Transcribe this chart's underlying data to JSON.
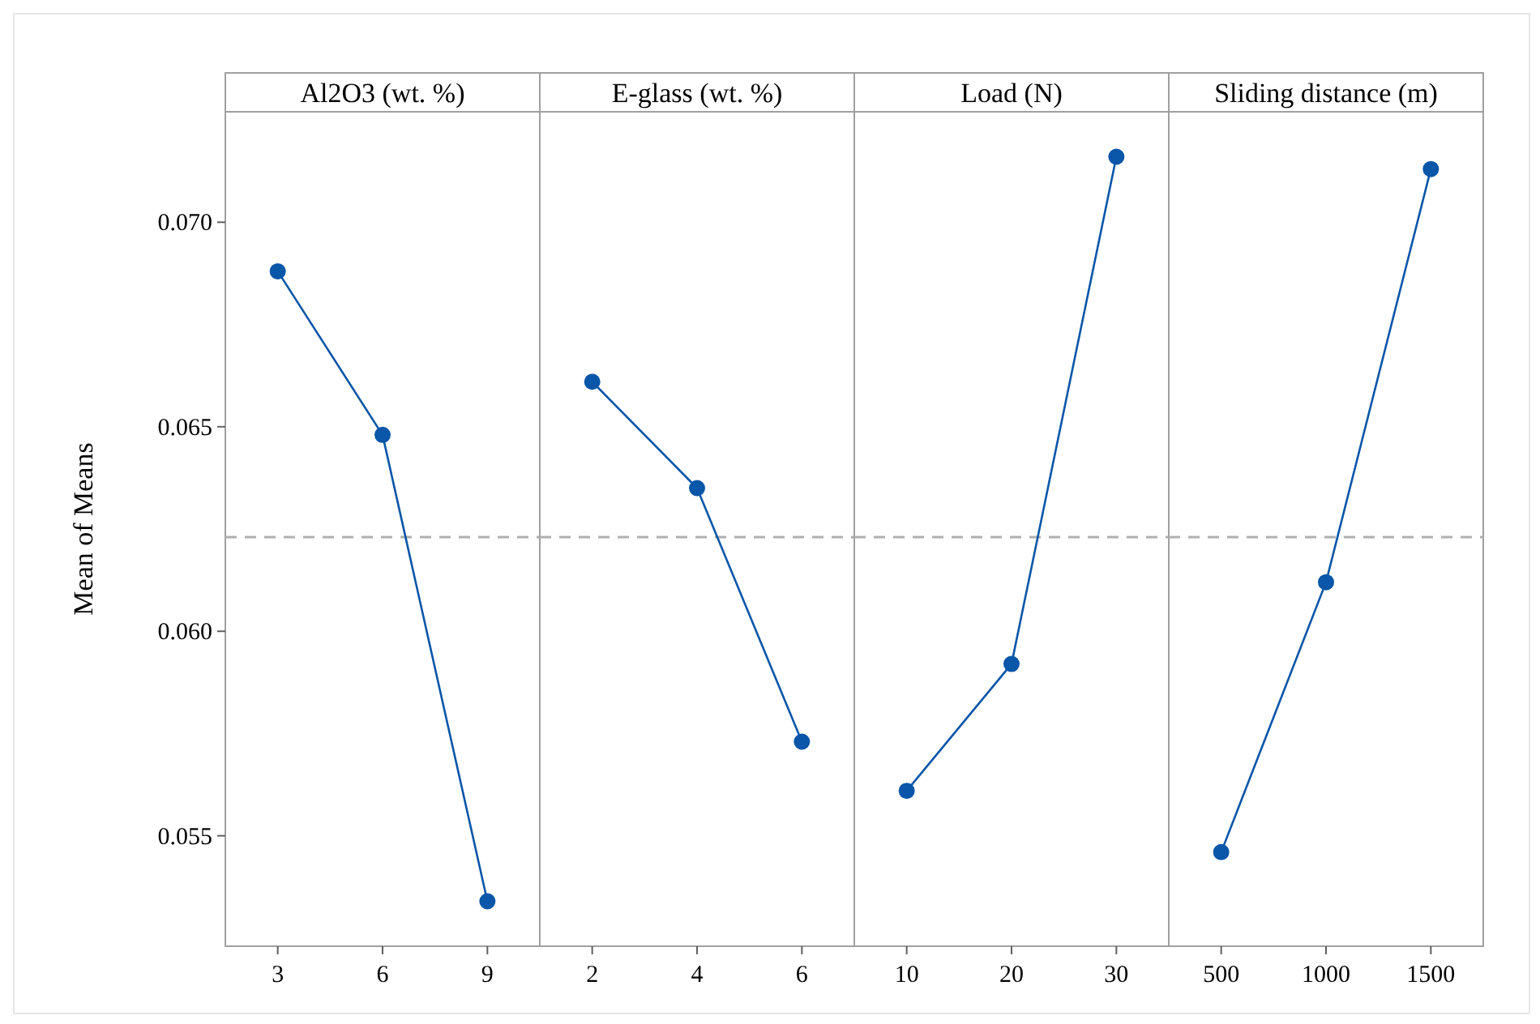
{
  "chart_data": [
    {
      "type": "line",
      "title": "Al2O3 (wt. %)",
      "ylabel": "Mean of Means",
      "categories": [
        "3",
        "6",
        "9"
      ],
      "series": [
        {
          "color": "#0a56a8",
          "values": [
            0.0688,
            0.0648,
            0.0534
          ]
        }
      ],
      "ylim": [
        0.0523,
        0.0727
      ],
      "yticks": [
        0.055,
        {
          "value": 0.06,
          "label": "0.060"
        },
        0.065,
        {
          "value": 0.07,
          "label": "0.070"
        }
      ],
      "ref_lines": [
        {
          "axis": "y",
          "value": 0.0623,
          "color": "#b0b0b0",
          "line_style": "dashed"
        }
      ],
      "marker": "circle",
      "line_style": "solid",
      "grid": false
    },
    {
      "type": "line",
      "title": "E-glass (wt. %)",
      "categories": [
        "2",
        "4",
        "6"
      ],
      "series": [
        {
          "color": "#0a56a8",
          "values": [
            0.0661,
            0.0635,
            0.0573
          ]
        }
      ],
      "ylim": [
        0.0523,
        0.0727
      ],
      "tick_labels": "x",
      "ref_lines": [
        {
          "axis": "y",
          "value": 0.0623,
          "color": "#b0b0b0",
          "line_style": "dashed"
        }
      ],
      "marker": "circle",
      "line_style": "solid",
      "grid": false
    },
    {
      "type": "line",
      "title": "Load (N)",
      "categories": [
        "10",
        "20",
        "30"
      ],
      "series": [
        {
          "color": "#0a56a8",
          "values": [
            0.0561,
            0.0592,
            0.0716
          ]
        }
      ],
      "ylim": [
        0.0523,
        0.0727
      ],
      "tick_labels": "x",
      "ref_lines": [
        {
          "axis": "y",
          "value": 0.0623,
          "color": "#b0b0b0",
          "line_style": "dashed"
        }
      ],
      "marker": "circle",
      "line_style": "solid",
      "grid": false
    },
    {
      "type": "line",
      "title": "Sliding distance (m)",
      "categories": [
        "500",
        "1000",
        "1500"
      ],
      "series": [
        {
          "color": "#0a56a8",
          "values": [
            0.0546,
            0.0612,
            0.0713
          ]
        }
      ],
      "ylim": [
        0.0523,
        0.0727
      ],
      "tick_labels": "x",
      "ref_lines": [
        {
          "axis": "y",
          "value": 0.0623,
          "color": "#b0b0b0",
          "line_style": "dashed"
        }
      ],
      "marker": "circle",
      "line_style": "solid",
      "grid": false
    }
  ]
}
